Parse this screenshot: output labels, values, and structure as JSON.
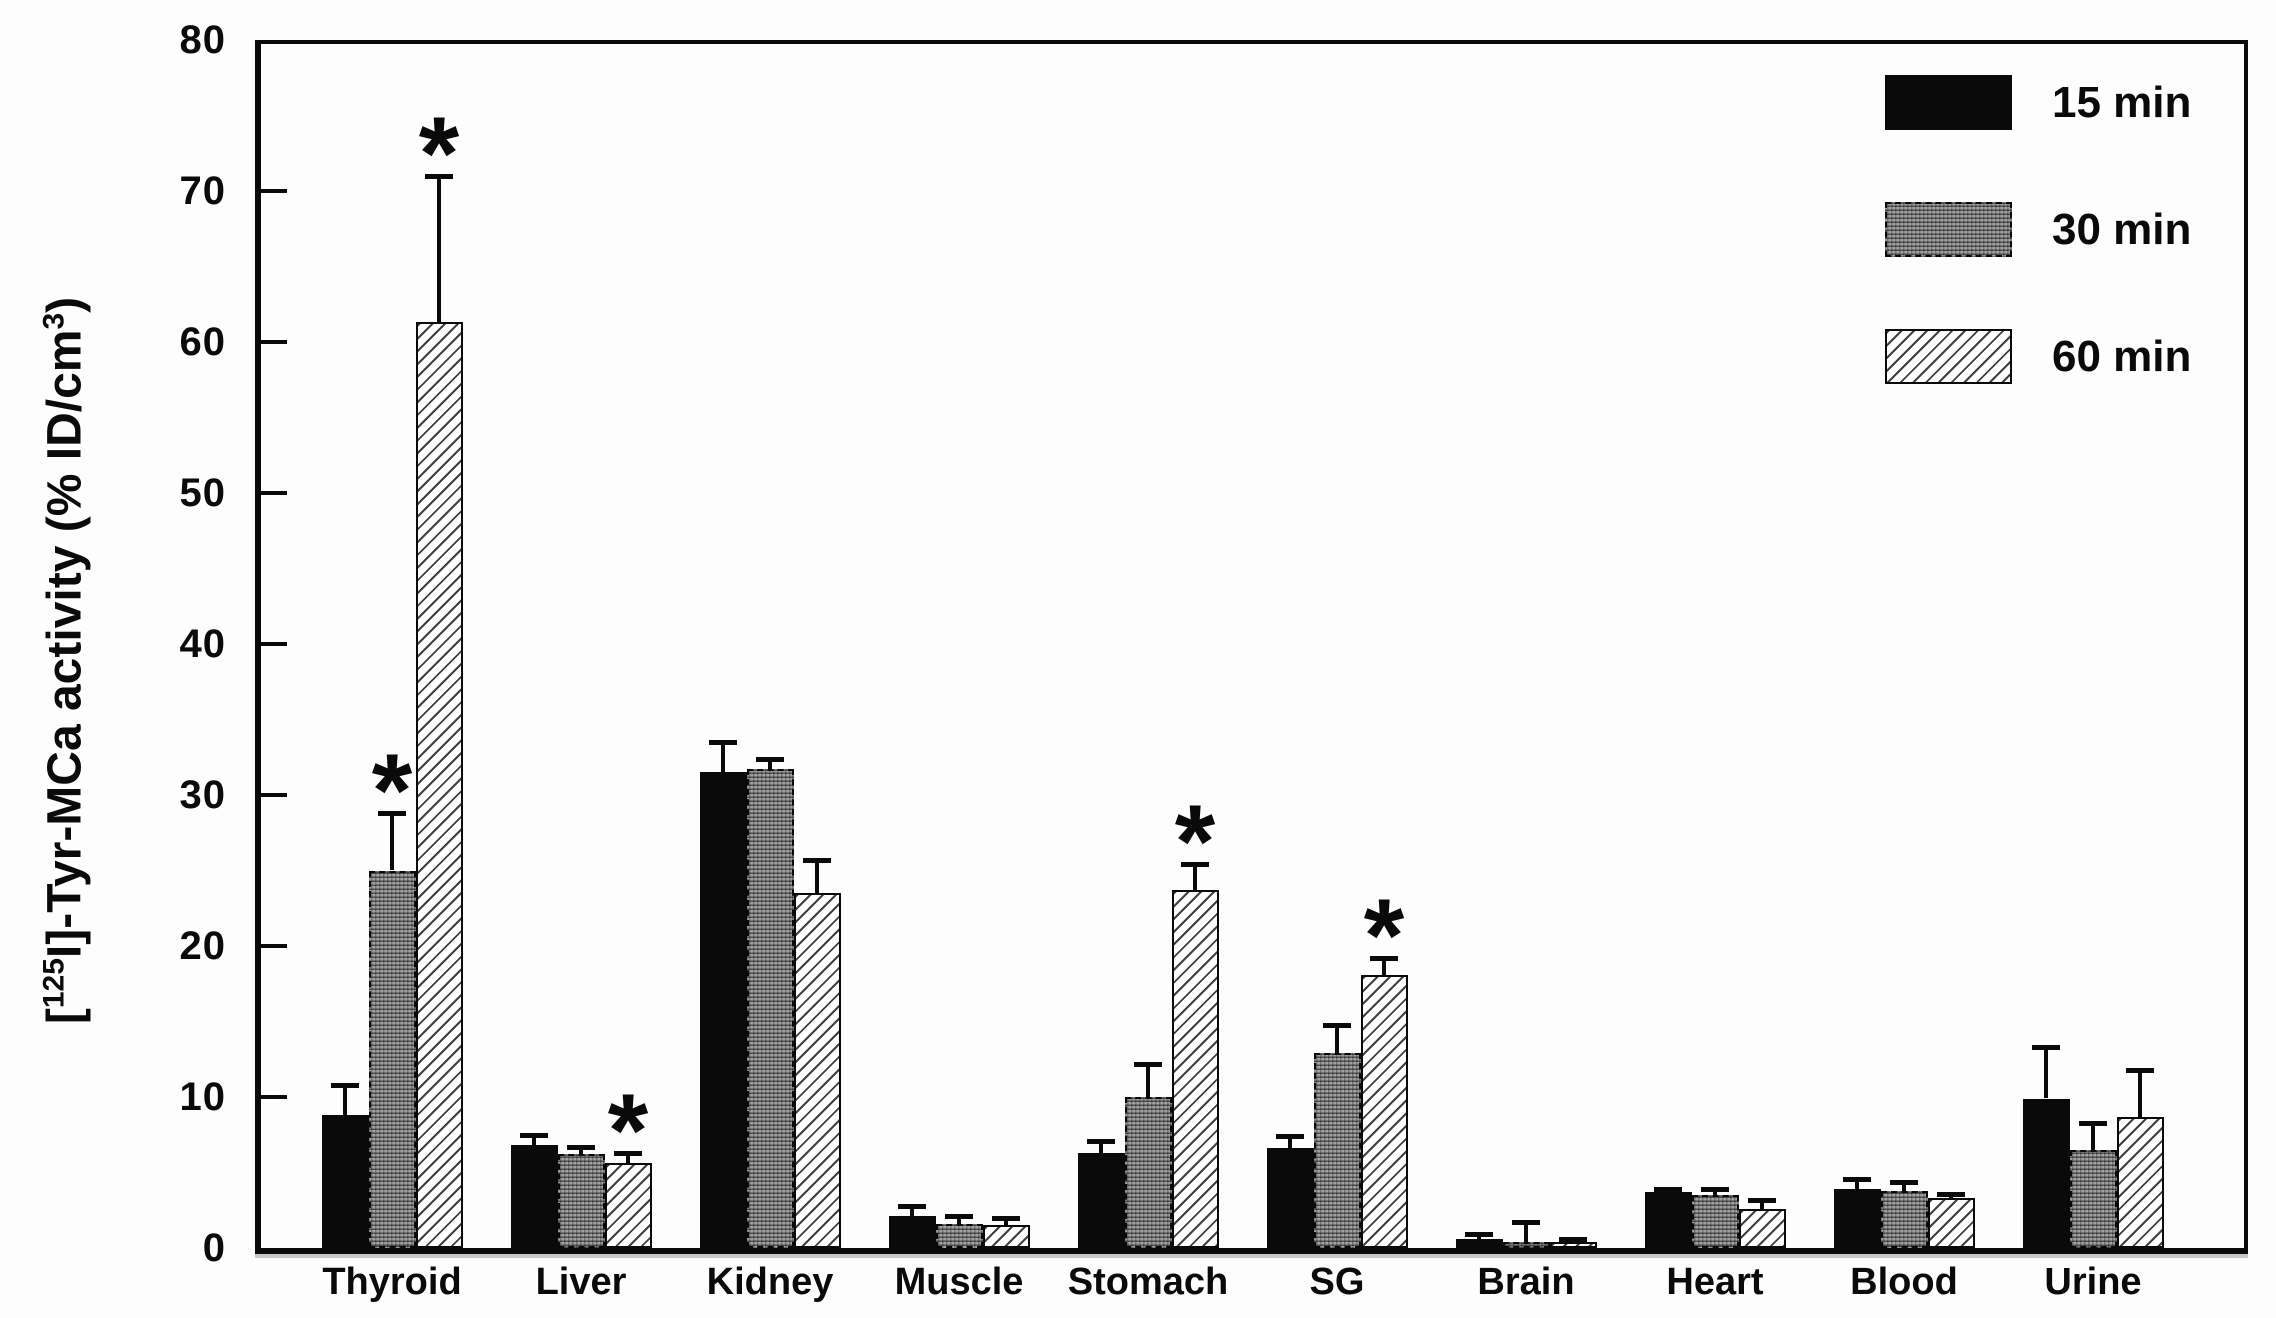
{
  "figure": {
    "y_axis": {
      "label_parts": [
        {
          "t": "[",
          "sup": false
        },
        {
          "t": "125",
          "sup": true
        },
        {
          "t": "I]-Tyr-MCa activity (% ID/cm",
          "sup": false
        },
        {
          "t": "3",
          "sup": true
        },
        {
          "t": ")",
          "sup": false
        }
      ],
      "tick_values": [
        0,
        10,
        20,
        30,
        40,
        50,
        60,
        70,
        80
      ]
    },
    "legend": {
      "items": [
        "15 min",
        "30 min",
        "60 min"
      ]
    },
    "significance_marker": "*",
    "colors": {
      "bar_black": "#0a0a0a",
      "bar_gray": "#a2a2a2",
      "hatch_background": "#ffffff",
      "axis": "#0a0a0a",
      "background": "#fdfdfd"
    }
  },
  "chart_data": {
    "type": "bar",
    "title": "",
    "xlabel": "",
    "ylabel": "[125I]-Tyr-MCa activity (% ID/cm3)",
    "ylim": [
      0,
      80
    ],
    "ytick_step": 10,
    "grid": false,
    "legend_position": "top-right-inside",
    "error_bars": "upper-only",
    "categories": [
      "Thyroid",
      "Liver",
      "Kidney",
      "Muscle",
      "Stomach",
      "SG",
      "Brain",
      "Heart",
      "Blood",
      "Urine"
    ],
    "series": [
      {
        "name": "15 min",
        "pattern": "solid-black",
        "values": [
          8.8,
          6.8,
          31.5,
          2.1,
          6.3,
          6.6,
          0.6,
          3.7,
          3.9,
          9.9
        ],
        "errors": [
          2.0,
          0.7,
          2.0,
          0.7,
          0.8,
          0.8,
          0.3,
          0.2,
          0.7,
          3.4
        ],
        "significant": [
          false,
          false,
          false,
          false,
          false,
          false,
          false,
          false,
          false,
          false
        ]
      },
      {
        "name": "30 min",
        "pattern": "gray-checker",
        "values": [
          25.0,
          6.2,
          31.7,
          1.6,
          10.0,
          12.9,
          0.4,
          3.5,
          3.8,
          6.5
        ],
        "errors": [
          3.8,
          0.5,
          0.7,
          0.5,
          2.2,
          1.9,
          1.3,
          0.4,
          0.6,
          1.8
        ],
        "significant": [
          true,
          false,
          false,
          false,
          false,
          false,
          false,
          false,
          false,
          false
        ]
      },
      {
        "name": "60 min",
        "pattern": "diagonal-hatch",
        "values": [
          61.3,
          5.6,
          23.5,
          1.5,
          23.7,
          18.1,
          0.4,
          2.6,
          3.3,
          8.7
        ],
        "errors": [
          9.7,
          0.7,
          2.2,
          0.5,
          1.7,
          1.1,
          0.2,
          0.6,
          0.3,
          3.1
        ],
        "significant": [
          true,
          true,
          false,
          false,
          true,
          true,
          false,
          false,
          false,
          false
        ]
      }
    ]
  }
}
